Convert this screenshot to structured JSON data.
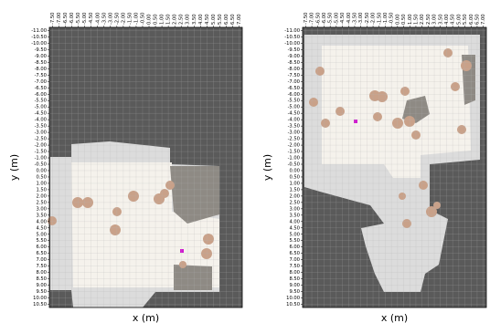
{
  "chart_data": [
    {
      "type": "map",
      "xlabel": "x (m)",
      "ylabel": "y (m)",
      "xlim": [
        -7.75,
        7.25
      ],
      "ylim": [
        -11.25,
        10.75
      ],
      "y_inverted": true,
      "grid": true,
      "xticks": [
        {
          "value": -7.5,
          "label": "-7.50"
        },
        {
          "value": -7,
          "label": "-7.00"
        },
        {
          "value": -6.5,
          "label": "-6.50"
        },
        {
          "value": -6,
          "label": "-6.00"
        },
        {
          "value": -5.5,
          "label": "-5.50"
        },
        {
          "value": -5,
          "label": "-5.00"
        },
        {
          "value": -4.5,
          "label": "-4.50"
        },
        {
          "value": -4,
          "label": "-4.00"
        },
        {
          "value": -3.5,
          "label": "-3.50"
        },
        {
          "value": -3,
          "label": "-3.00"
        },
        {
          "value": -2.5,
          "label": "-2.50"
        },
        {
          "value": -2,
          "label": "-2.00"
        },
        {
          "value": -1.5,
          "label": "-1.50"
        },
        {
          "value": -1,
          "label": "-1.00"
        },
        {
          "value": -0.5,
          "label": "-0.50"
        },
        {
          "value": 0,
          "label": "0.00"
        },
        {
          "value": 0.5,
          "label": "0.50"
        },
        {
          "value": 1,
          "label": "1.00"
        },
        {
          "value": 1.5,
          "label": "1.50"
        },
        {
          "value": 2,
          "label": "2.00"
        },
        {
          "value": 2.5,
          "label": "2.50"
        },
        {
          "value": 3,
          "label": "3.00"
        },
        {
          "value": 3.5,
          "label": "3.50"
        },
        {
          "value": 4,
          "label": "4.00"
        },
        {
          "value": 4.5,
          "label": "4.50"
        },
        {
          "value": 5,
          "label": "5.00"
        },
        {
          "value": 5.5,
          "label": "5.50"
        },
        {
          "value": 6,
          "label": "6.00"
        },
        {
          "value": 6.5,
          "label": "6.50"
        },
        {
          "value": 7,
          "label": "7.00"
        }
      ],
      "yticks": [
        {
          "value": -11,
          "label": "-11.00"
        },
        {
          "value": -10.5,
          "label": "-10.50"
        },
        {
          "value": -10,
          "label": "-10.00"
        },
        {
          "value": -9.5,
          "label": "-9.50"
        },
        {
          "value": -9,
          "label": "-9.00"
        },
        {
          "value": -8.5,
          "label": "-8.50"
        },
        {
          "value": -8,
          "label": "-8.00"
        },
        {
          "value": -7.5,
          "label": "-7.50"
        },
        {
          "value": -7,
          "label": "-7.00"
        },
        {
          "value": -6.5,
          "label": "-6.50"
        },
        {
          "value": -6,
          "label": "-6.00"
        },
        {
          "value": -5.5,
          "label": "-5.50"
        },
        {
          "value": -5,
          "label": "-5.00"
        },
        {
          "value": -4.5,
          "label": "-4.50"
        },
        {
          "value": -4,
          "label": "-4.00"
        },
        {
          "value": -3.5,
          "label": "-3.50"
        },
        {
          "value": -3,
          "label": "-3.00"
        },
        {
          "value": -2.5,
          "label": "-2.50"
        },
        {
          "value": -2,
          "label": "-2.00"
        },
        {
          "value": -1.5,
          "label": "-1.50"
        },
        {
          "value": -1,
          "label": "-1.00"
        },
        {
          "value": -0.5,
          "label": "-0.50"
        },
        {
          "value": 0,
          "label": "0.00"
        },
        {
          "value": 0.5,
          "label": "0.50"
        },
        {
          "value": 1,
          "label": "1.00"
        },
        {
          "value": 1.5,
          "label": "1.50"
        },
        {
          "value": 2,
          "label": "2.00"
        },
        {
          "value": 2.5,
          "label": "2.50"
        },
        {
          "value": 3,
          "label": "3.00"
        },
        {
          "value": 3.5,
          "label": "3.50"
        },
        {
          "value": 4,
          "label": "4.00"
        },
        {
          "value": 4.5,
          "label": "4.50"
        },
        {
          "value": 5,
          "label": "5.00"
        },
        {
          "value": 5.5,
          "label": "5.50"
        },
        {
          "value": 6,
          "label": "6.00"
        },
        {
          "value": 6.5,
          "label": "6.50"
        },
        {
          "value": 7,
          "label": "7.00"
        },
        {
          "value": 7.5,
          "label": "7.50"
        },
        {
          "value": 8,
          "label": "8.00"
        },
        {
          "value": 8.5,
          "label": "8.50"
        },
        {
          "value": 9,
          "label": "9.00"
        },
        {
          "value": 9.5,
          "label": "9.50"
        },
        {
          "value": 10,
          "label": "10.00"
        },
        {
          "value": 10.5,
          "label": "10.50"
        }
      ]
    },
    {
      "type": "map",
      "xlabel": "x (m)",
      "ylabel": "y (m)",
      "xlim": [
        -7.75,
        7.25
      ],
      "ylim": [
        -11.25,
        10.75
      ],
      "y_inverted": true,
      "grid": true,
      "xticks": [
        {
          "value": -7.5,
          "label": "-7.50"
        },
        {
          "value": -7,
          "label": "-7.00"
        },
        {
          "value": -6.5,
          "label": "-6.50"
        },
        {
          "value": -6,
          "label": "-6.00"
        },
        {
          "value": -5.5,
          "label": "-5.50"
        },
        {
          "value": -5,
          "label": "-5.00"
        },
        {
          "value": -4.5,
          "label": "-4.50"
        },
        {
          "value": -4,
          "label": "-4.00"
        },
        {
          "value": -3.5,
          "label": "-3.50"
        },
        {
          "value": -3,
          "label": "-3.00"
        },
        {
          "value": -2.5,
          "label": "-2.50"
        },
        {
          "value": -2,
          "label": "-2.00"
        },
        {
          "value": -1.5,
          "label": "-1.50"
        },
        {
          "value": -1,
          "label": "-1.00"
        },
        {
          "value": -0.5,
          "label": "-0.50"
        },
        {
          "value": 0,
          "label": "0.00"
        },
        {
          "value": 0.5,
          "label": "0.50"
        },
        {
          "value": 1,
          "label": "1.00"
        },
        {
          "value": 1.5,
          "label": "1.50"
        },
        {
          "value": 2,
          "label": "2.00"
        },
        {
          "value": 2.5,
          "label": "2.50"
        },
        {
          "value": 3,
          "label": "3.00"
        },
        {
          "value": 3.5,
          "label": "3.50"
        },
        {
          "value": 4,
          "label": "4.00"
        },
        {
          "value": 4.5,
          "label": "4.50"
        },
        {
          "value": 5,
          "label": "5.00"
        },
        {
          "value": 5.5,
          "label": "5.50"
        },
        {
          "value": 6,
          "label": "6.00"
        },
        {
          "value": 6.5,
          "label": "6.50"
        },
        {
          "value": 7,
          "label": "7.00"
        }
      ],
      "yticks": [
        {
          "value": -11,
          "label": "-11.00"
        },
        {
          "value": -10.5,
          "label": "-10.50"
        },
        {
          "value": -10,
          "label": "-10.00"
        },
        {
          "value": -9.5,
          "label": "-9.50"
        },
        {
          "value": -9,
          "label": "-9.00"
        },
        {
          "value": -8.5,
          "label": "-8.50"
        },
        {
          "value": -8,
          "label": "-8.00"
        },
        {
          "value": -7.5,
          "label": "-7.50"
        },
        {
          "value": -7,
          "label": "-7.00"
        },
        {
          "value": -6.5,
          "label": "-6.50"
        },
        {
          "value": -6,
          "label": "-6.00"
        },
        {
          "value": -5.5,
          "label": "-5.50"
        },
        {
          "value": -5,
          "label": "-5.00"
        },
        {
          "value": -4.5,
          "label": "-4.50"
        },
        {
          "value": -4,
          "label": "-4.00"
        },
        {
          "value": -3.5,
          "label": "-3.50"
        },
        {
          "value": -3,
          "label": "-3.00"
        },
        {
          "value": -2.5,
          "label": "-2.50"
        },
        {
          "value": -2,
          "label": "-2.00"
        },
        {
          "value": -1.5,
          "label": "-1.50"
        },
        {
          "value": -1,
          "label": "-1.00"
        },
        {
          "value": -0.5,
          "label": "-0.50"
        },
        {
          "value": 0,
          "label": "0.00"
        },
        {
          "value": 0.5,
          "label": "0.50"
        },
        {
          "value": 1,
          "label": "1.00"
        },
        {
          "value": 1.5,
          "label": "1.50"
        },
        {
          "value": 2,
          "label": "2.00"
        },
        {
          "value": 2.5,
          "label": "2.50"
        },
        {
          "value": 3,
          "label": "3.00"
        },
        {
          "value": 3.5,
          "label": "3.50"
        },
        {
          "value": 4,
          "label": "4.00"
        },
        {
          "value": 4.5,
          "label": "4.50"
        },
        {
          "value": 5,
          "label": "5.00"
        },
        {
          "value": 5.5,
          "label": "5.50"
        },
        {
          "value": 6,
          "label": "6.00"
        },
        {
          "value": 6.5,
          "label": "6.50"
        },
        {
          "value": 7,
          "label": "7.00"
        },
        {
          "value": 7.5,
          "label": "7.50"
        },
        {
          "value": 8,
          "label": "8.00"
        },
        {
          "value": 8.5,
          "label": "8.50"
        },
        {
          "value": 9,
          "label": "9.00"
        },
        {
          "value": 9.5,
          "label": "9.50"
        },
        {
          "value": 10,
          "label": "10.00"
        },
        {
          "value": 10.5,
          "label": "10.50"
        }
      ]
    }
  ]
}
